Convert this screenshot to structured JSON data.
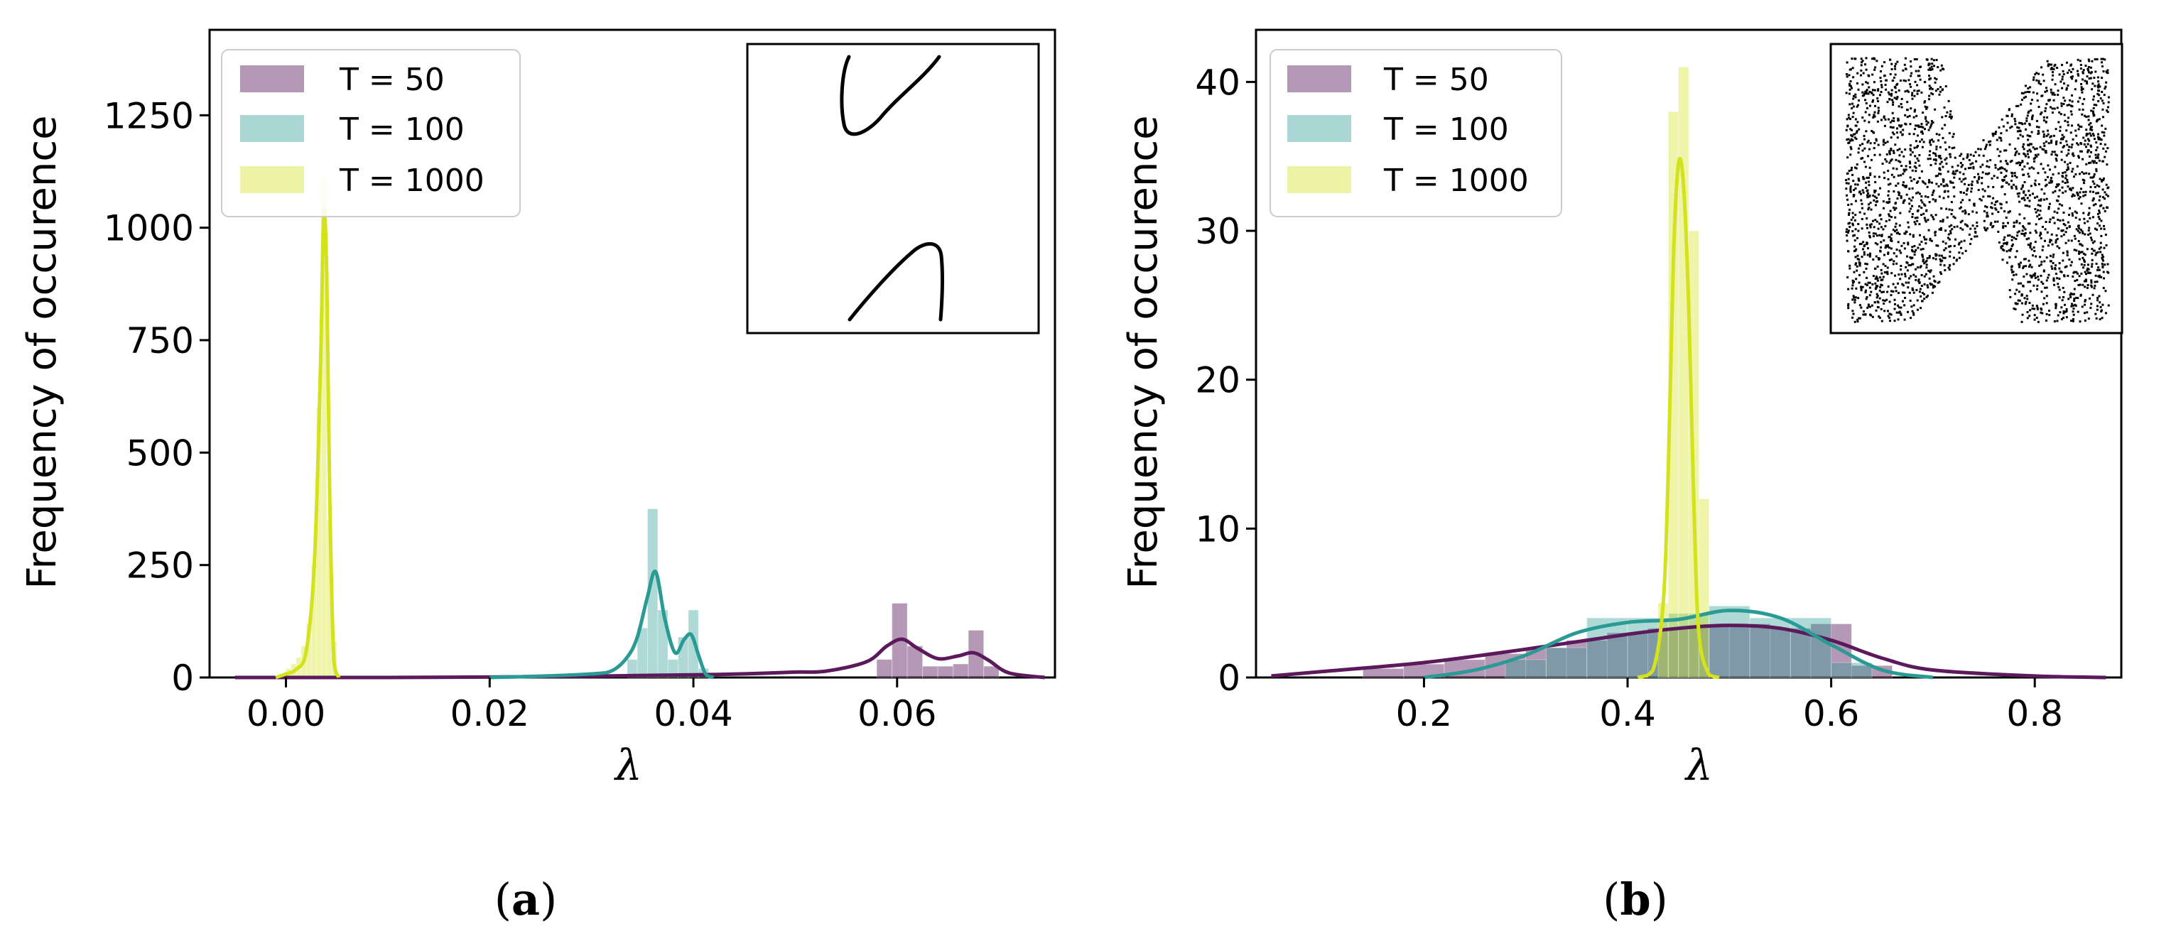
{
  "colors": {
    "t50": "#5c1a5c",
    "t100": "#2a9a94",
    "t1000": "#d3e21b"
  },
  "legend": [
    "T = 50",
    "T = 100",
    "T = 1000"
  ],
  "captions": {
    "a": "a",
    "b": "b"
  },
  "chart_data": [
    {
      "type": "bar",
      "panel": "a",
      "xlabel": "λ",
      "ylabel": "Frequency of occurence",
      "xlim": [
        -0.0075,
        0.0755
      ],
      "ylim": [
        0,
        1440
      ],
      "xticks": [
        0.0,
        0.02,
        0.04,
        0.06
      ],
      "xtick_labels": [
        "0.00",
        "0.02",
        "0.04",
        "0.06"
      ],
      "yticks": [
        0,
        250,
        500,
        750,
        1000,
        1250
      ],
      "ytick_labels": [
        "0",
        "250",
        "500",
        "750",
        "1000",
        "1250"
      ],
      "grid": false,
      "legend_position": "top-left",
      "inset": "closed curve (two arcs)",
      "series": [
        {
          "name": "T = 50",
          "bins": [
            [
              0.058,
              0.0595,
              40
            ],
            [
              0.0595,
              0.061,
              165
            ],
            [
              0.061,
              0.0625,
              70
            ],
            [
              0.0625,
              0.064,
              25
            ],
            [
              0.064,
              0.0655,
              25
            ],
            [
              0.0655,
              0.067,
              30
            ],
            [
              0.067,
              0.0685,
              105
            ],
            [
              0.0685,
              0.07,
              25
            ]
          ],
          "kde_x": [
            -0.005,
            0.0,
            0.01,
            0.02,
            0.03,
            0.04,
            0.045,
            0.05,
            0.053,
            0.057,
            0.059,
            0.0605,
            0.062,
            0.064,
            0.066,
            0.0675,
            0.069,
            0.071,
            0.0745
          ],
          "kde_y": [
            0,
            0,
            0,
            1,
            3,
            6,
            8,
            12,
            14,
            35,
            70,
            85,
            65,
            42,
            48,
            55,
            38,
            10,
            0
          ]
        },
        {
          "name": "T = 100",
          "bins": [
            [
              0.0335,
              0.0345,
              40
            ],
            [
              0.0345,
              0.0355,
              110
            ],
            [
              0.0355,
              0.0365,
              375
            ],
            [
              0.0365,
              0.0375,
              150
            ],
            [
              0.0375,
              0.0385,
              40
            ],
            [
              0.0385,
              0.0395,
              90
            ],
            [
              0.0395,
              0.0405,
              150
            ],
            [
              0.0405,
              0.0415,
              20
            ]
          ],
          "kde_x": [
            0.02,
            0.025,
            0.03,
            0.032,
            0.0335,
            0.0345,
            0.0355,
            0.0363,
            0.0372,
            0.0382,
            0.0391,
            0.0398,
            0.0405,
            0.0412,
            0.042
          ],
          "kde_y": [
            0,
            3,
            8,
            15,
            45,
            90,
            180,
            235,
            130,
            55,
            85,
            95,
            50,
            8,
            0
          ]
        },
        {
          "name": "T = 1000",
          "bins": [
            [
              0.0,
              0.0005,
              20
            ],
            [
              0.0005,
              0.001,
              30
            ],
            [
              0.001,
              0.0015,
              45
            ],
            [
              0.0015,
              0.002,
              70
            ],
            [
              0.002,
              0.0025,
              120
            ],
            [
              0.0025,
              0.003,
              250
            ],
            [
              0.003,
              0.0035,
              600
            ],
            [
              0.0035,
              0.004,
              1110
            ],
            [
              0.004,
              0.0045,
              350
            ],
            [
              0.0045,
              0.005,
              80
            ]
          ],
          "kde_x": [
            -0.001,
            0.0,
            0.001,
            0.002,
            0.0028,
            0.0034,
            0.0037,
            0.004,
            0.0043,
            0.0047,
            0.0052
          ],
          "kde_y": [
            0,
            8,
            18,
            60,
            260,
            700,
            1030,
            900,
            400,
            40,
            0
          ]
        }
      ]
    },
    {
      "type": "bar",
      "panel": "b",
      "xlabel": "λ",
      "ylabel": "Frequency of occurence",
      "xlim": [
        0.035,
        0.885
      ],
      "ylim": [
        0,
        43.5
      ],
      "xticks": [
        0.2,
        0.4,
        0.6,
        0.8
      ],
      "xtick_labels": [
        "0.2",
        "0.4",
        "0.6",
        "0.8"
      ],
      "yticks": [
        0,
        10,
        20,
        30,
        40
      ],
      "ytick_labels": [
        "0",
        "10",
        "20",
        "30",
        "40"
      ],
      "grid": false,
      "legend_position": "top-left",
      "inset": "scattered points (chaotic attractor)",
      "series": [
        {
          "name": "T = 50",
          "bins": [
            [
              0.14,
              0.18,
              0.6
            ],
            [
              0.18,
              0.22,
              0.9
            ],
            [
              0.22,
              0.26,
              1.2
            ],
            [
              0.26,
              0.3,
              1.6
            ],
            [
              0.3,
              0.34,
              2.0
            ],
            [
              0.34,
              0.38,
              2.5
            ],
            [
              0.38,
              0.42,
              3.0
            ],
            [
              0.42,
              0.46,
              3.3
            ],
            [
              0.46,
              0.5,
              3.5
            ],
            [
              0.5,
              0.54,
              3.6
            ],
            [
              0.54,
              0.58,
              3.3
            ],
            [
              0.58,
              0.62,
              3.6
            ],
            [
              0.62,
              0.66,
              0.8
            ]
          ],
          "kde_x": [
            0.05,
            0.1,
            0.2,
            0.3,
            0.4,
            0.45,
            0.5,
            0.55,
            0.6,
            0.65,
            0.7,
            0.8,
            0.87
          ],
          "kde_y": [
            0.1,
            0.4,
            1.0,
            1.9,
            2.9,
            3.3,
            3.5,
            3.3,
            2.5,
            1.3,
            0.5,
            0.1,
            0.0
          ]
        },
        {
          "name": "T = 100",
          "bins": [
            [
              0.28,
              0.32,
              1.2
            ],
            [
              0.32,
              0.36,
              2.0
            ],
            [
              0.36,
              0.4,
              4.0
            ],
            [
              0.4,
              0.44,
              4.0
            ],
            [
              0.44,
              0.48,
              4.3
            ],
            [
              0.48,
              0.52,
              4.8
            ],
            [
              0.52,
              0.56,
              4.0
            ],
            [
              0.56,
              0.6,
              4.0
            ],
            [
              0.6,
              0.64,
              1.0
            ]
          ],
          "kde_x": [
            0.2,
            0.25,
            0.3,
            0.35,
            0.4,
            0.45,
            0.5,
            0.55,
            0.6,
            0.65,
            0.7
          ],
          "kde_y": [
            0,
            0.5,
            1.5,
            3.0,
            3.7,
            3.9,
            4.5,
            4.0,
            2.2,
            0.5,
            0
          ]
        },
        {
          "name": "T = 1000",
          "bins": [
            [
              0.43,
              0.44,
              5
            ],
            [
              0.44,
              0.45,
              38
            ],
            [
              0.45,
              0.46,
              41
            ],
            [
              0.46,
              0.47,
              30
            ],
            [
              0.47,
              0.48,
              12
            ]
          ],
          "kde_x": [
            0.41,
            0.425,
            0.435,
            0.44,
            0.445,
            0.45,
            0.455,
            0.46,
            0.465,
            0.47,
            0.48,
            0.49
          ],
          "kde_y": [
            0,
            0.5,
            5,
            14,
            28,
            34.5,
            33,
            25,
            12,
            3,
            0.2,
            0
          ]
        }
      ]
    }
  ]
}
